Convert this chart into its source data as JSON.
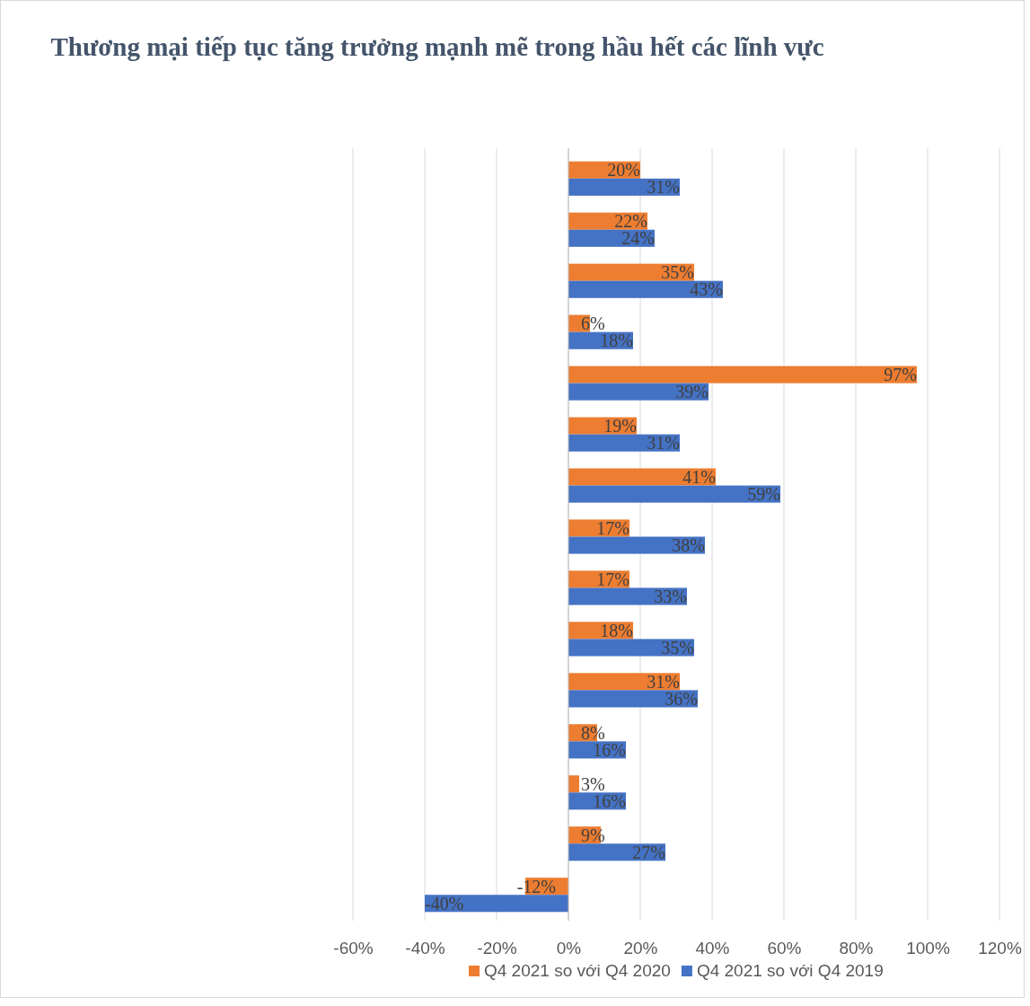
{
  "chart_data": {
    "type": "bar",
    "orientation": "horizontal",
    "title": "Thương mại tiếp tục tăng trưởng mạnh mẽ trong hầu hết các lĩnh vực",
    "categories": [
      null,
      null,
      null,
      null,
      null,
      null,
      null,
      null,
      null,
      null,
      null,
      null,
      null,
      null,
      null
    ],
    "series": [
      {
        "name": "Q4 2021 so với Q4 2020",
        "color": "#ed7d31",
        "values": [
          20,
          22,
          35,
          6,
          97,
          19,
          41,
          17,
          17,
          18,
          31,
          8,
          3,
          9,
          -12
        ],
        "value_labels": [
          "20%",
          "22%",
          "35%",
          "6%",
          "97%",
          "19%",
          "41%",
          "17%",
          "17%",
          "18%",
          "31%",
          "8%",
          "3%",
          "9%",
          "-12%"
        ]
      },
      {
        "name": "Q4 2021 so với Q4 2019",
        "color": "#4472c4",
        "values": [
          31,
          24,
          43,
          18,
          39,
          31,
          59,
          38,
          33,
          35,
          36,
          16,
          16,
          27,
          -40
        ],
        "value_labels": [
          "31%",
          "24%",
          "43%",
          "18%",
          "39%",
          "31%",
          "59%",
          "38%",
          "33%",
          "35%",
          "36%",
          "16%",
          "16%",
          "27%",
          "-40%"
        ]
      }
    ],
    "xlim": [
      -60,
      120
    ],
    "xticks": [
      {
        "value": -60,
        "label": "-60%"
      },
      {
        "value": -40,
        "label": "-40%"
      },
      {
        "value": -20,
        "label": "-20%"
      },
      {
        "value": 0,
        "label": "0%"
      },
      {
        "value": 20,
        "label": "20%"
      },
      {
        "value": 40,
        "label": "40%"
      },
      {
        "value": 60,
        "label": "60%"
      },
      {
        "value": 80,
        "label": "80%"
      },
      {
        "value": 100,
        "label": "100%"
      },
      {
        "value": 120,
        "label": "120%"
      }
    ],
    "grid": "x",
    "legend": "bottom"
  }
}
